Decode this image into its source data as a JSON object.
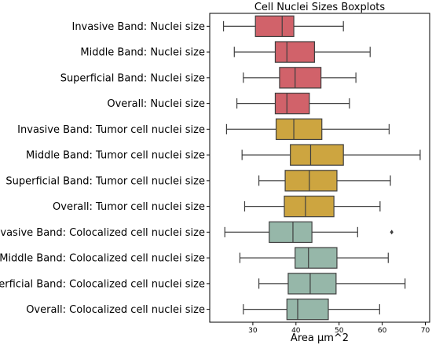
{
  "chart_data": {
    "type": "boxplot",
    "orientation": "horizontal",
    "title": "Cell Nuclei Sizes Boxplots",
    "xlabel": "Area µm^2",
    "ylabel": "",
    "xlim": [
      20,
      71
    ],
    "xticks": [
      30,
      40,
      50,
      60,
      70
    ],
    "grid": false,
    "colors": {
      "nuclei": "#d1626a",
      "tumor": "#cda540",
      "colocalized": "#96b7a9",
      "edge": "#3f3f3f"
    },
    "series": [
      {
        "name": "Invasive Band: Nuclei size",
        "color_key": "nuclei",
        "whisker_low": 23.2,
        "q1": 30.6,
        "median": 36.8,
        "q3": 39.5,
        "whisker_high": 51.0,
        "outliers": []
      },
      {
        "name": "Middle Band: Nuclei size",
        "color_key": "nuclei",
        "whisker_low": 25.7,
        "q1": 35.2,
        "median": 37.9,
        "q3": 44.3,
        "whisker_high": 57.2,
        "outliers": []
      },
      {
        "name": "Superficial Band: Nuclei size",
        "color_key": "nuclei",
        "whisker_low": 27.8,
        "q1": 36.2,
        "median": 39.8,
        "q3": 45.8,
        "whisker_high": 53.9,
        "outliers": []
      },
      {
        "name": "Overall: Nuclei size",
        "color_key": "nuclei",
        "whisker_low": 26.3,
        "q1": 35.2,
        "median": 37.9,
        "q3": 43.1,
        "whisker_high": 52.4,
        "outliers": []
      },
      {
        "name": "Invasive Band: Tumor cell nuclei size",
        "color_key": "tumor",
        "whisker_low": 23.9,
        "q1": 35.4,
        "median": 39.5,
        "q3": 46.0,
        "whisker_high": 61.6,
        "outliers": []
      },
      {
        "name": "Middle Band: Tumor cell nuclei size",
        "color_key": "tumor",
        "whisker_low": 27.5,
        "q1": 38.7,
        "median": 43.4,
        "q3": 51.0,
        "whisker_high": 68.8,
        "outliers": []
      },
      {
        "name": "Superficial Band: Tumor cell nuclei size",
        "color_key": "tumor",
        "whisker_low": 31.4,
        "q1": 37.5,
        "median": 43.1,
        "q3": 49.5,
        "whisker_high": 61.9,
        "outliers": []
      },
      {
        "name": "Overall: Tumor cell nuclei size",
        "color_key": "tumor",
        "whisker_low": 28.1,
        "q1": 37.3,
        "median": 42.2,
        "q3": 48.8,
        "whisker_high": 59.5,
        "outliers": []
      },
      {
        "name": "Invasive Band: Colocalized cell nuclei size",
        "color_key": "colocalized",
        "whisker_low": 23.5,
        "q1": 33.8,
        "median": 39.3,
        "q3": 43.7,
        "whisker_high": 54.3,
        "outliers": [
          62.2
        ]
      },
      {
        "name": "Middle Band: Colocalized cell nuclei size",
        "color_key": "colocalized",
        "whisker_low": 27.0,
        "q1": 39.8,
        "median": 42.9,
        "q3": 49.5,
        "whisker_high": 61.4,
        "outliers": []
      },
      {
        "name": "Superficial Band: Colocalized cell nuclei size",
        "color_key": "colocalized",
        "whisker_low": 31.4,
        "q1": 38.2,
        "median": 43.3,
        "q3": 49.3,
        "whisker_high": 65.3,
        "outliers": []
      },
      {
        "name": "Overall: Colocalized cell nuclei size",
        "color_key": "colocalized",
        "whisker_low": 27.8,
        "q1": 37.9,
        "median": 40.4,
        "q3": 47.5,
        "whisker_high": 59.4,
        "outliers": []
      }
    ]
  }
}
